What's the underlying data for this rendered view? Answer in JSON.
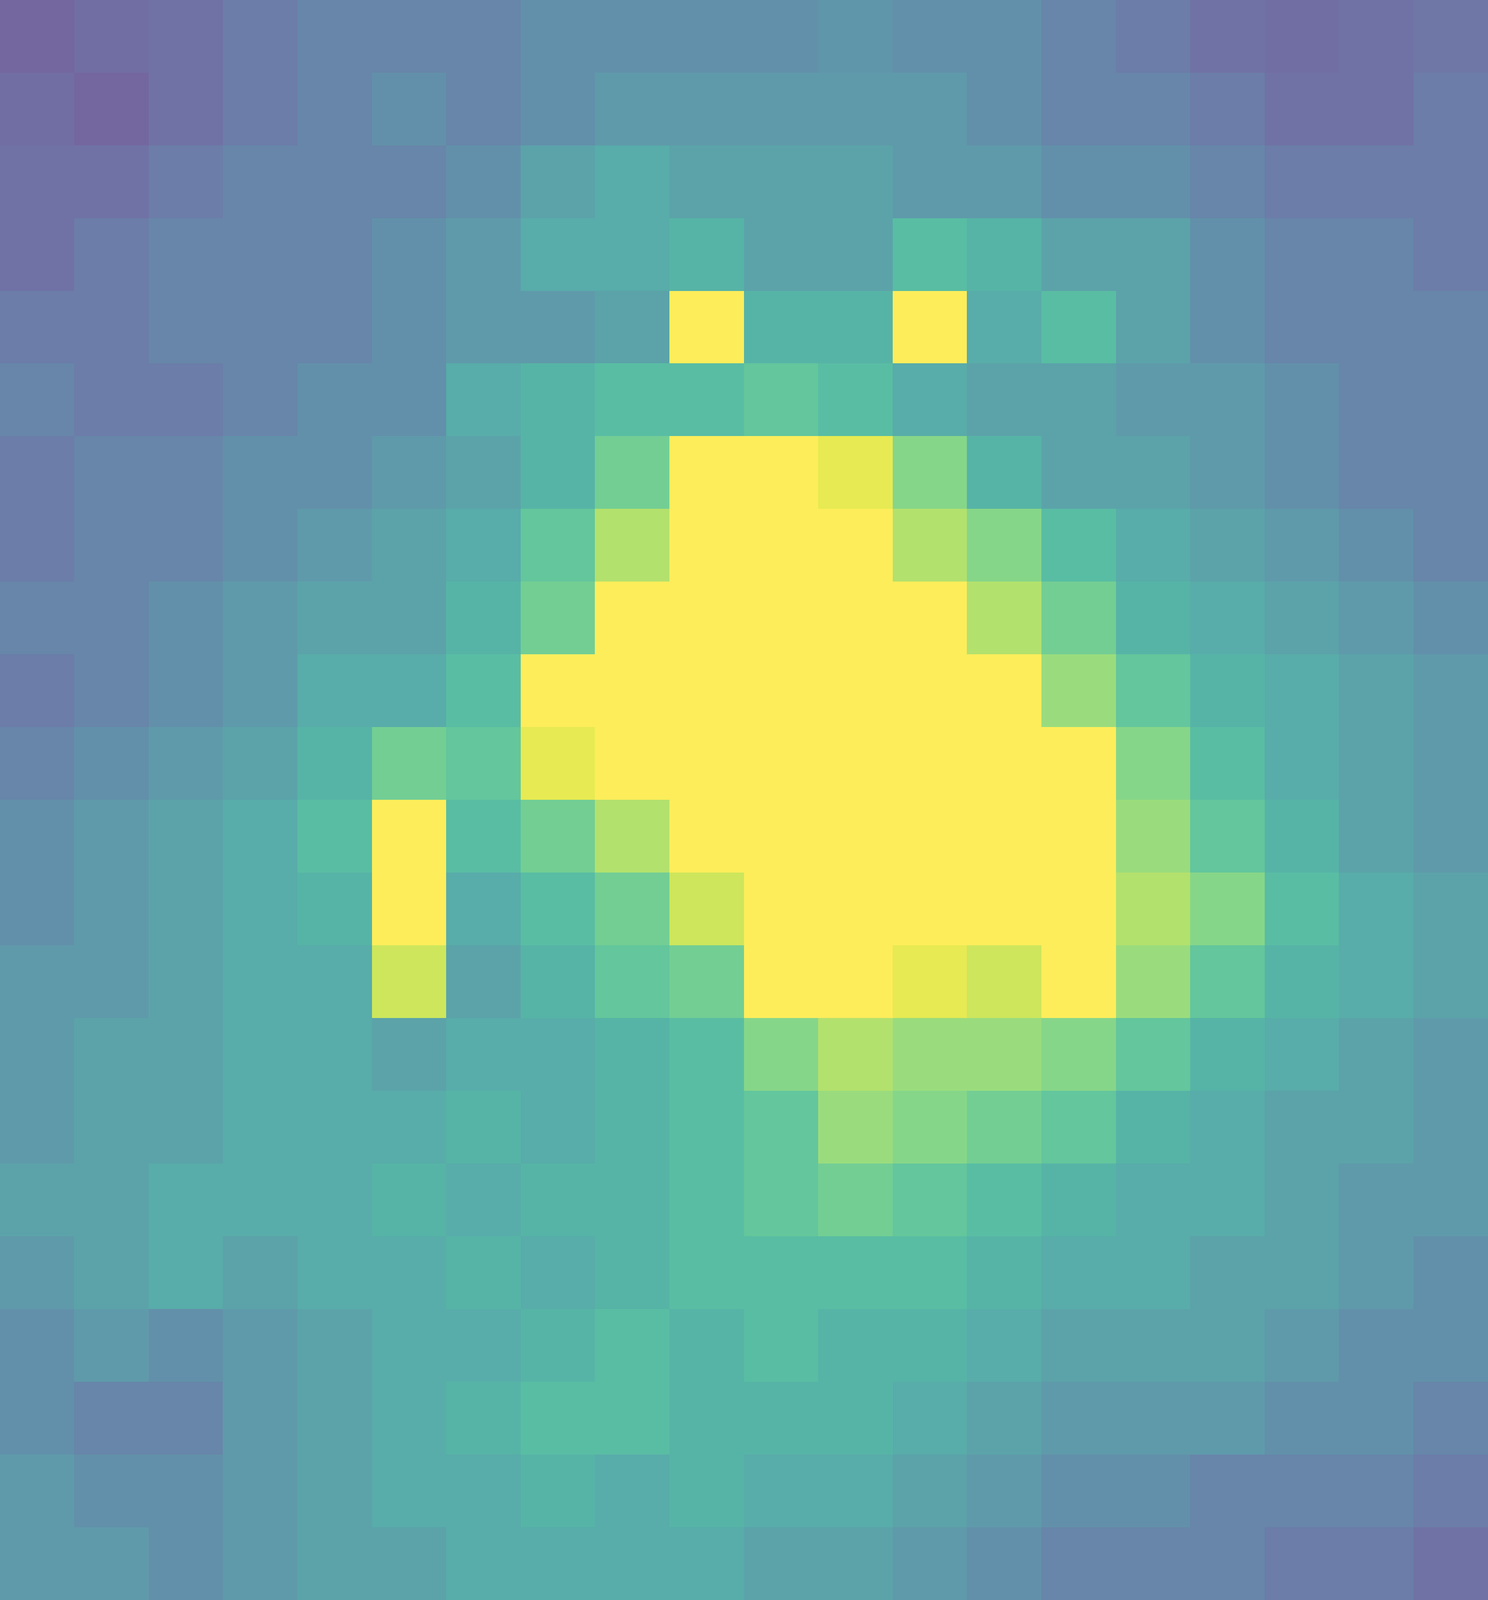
{
  "chart_data": {
    "type": "heatmap",
    "color": "viridis",
    "tick_labels": false,
    "color_range": [
      0,
      1
    ],
    "cells": [
      [
        0.15,
        0.18,
        0.2,
        0.25,
        0.3,
        0.3,
        0.3,
        0.35,
        0.35,
        0.35,
        0.35,
        0.38,
        0.35,
        0.35,
        0.3,
        0.25,
        0.2,
        0.18,
        0.2,
        0.22
      ],
      [
        0.18,
        0.15,
        0.2,
        0.25,
        0.3,
        0.35,
        0.3,
        0.35,
        0.4,
        0.4,
        0.4,
        0.4,
        0.4,
        0.35,
        0.3,
        0.3,
        0.25,
        0.2,
        0.2,
        0.25
      ],
      [
        0.2,
        0.2,
        0.25,
        0.3,
        0.3,
        0.3,
        0.35,
        0.45,
        0.5,
        0.45,
        0.45,
        0.45,
        0.4,
        0.4,
        0.35,
        0.35,
        0.3,
        0.25,
        0.25,
        0.25
      ],
      [
        0.2,
        0.25,
        0.3,
        0.3,
        0.3,
        0.35,
        0.4,
        0.5,
        0.5,
        0.55,
        0.45,
        0.45,
        0.6,
        0.55,
        0.45,
        0.45,
        0.35,
        0.3,
        0.3,
        0.25
      ],
      [
        0.25,
        0.25,
        0.3,
        0.3,
        0.3,
        0.35,
        0.4,
        0.4,
        0.45,
        1.0,
        0.55,
        0.55,
        1.0,
        0.5,
        0.6,
        0.45,
        0.35,
        0.3,
        0.3,
        0.3
      ],
      [
        0.3,
        0.25,
        0.25,
        0.3,
        0.35,
        0.35,
        0.5,
        0.55,
        0.6,
        0.6,
        0.65,
        0.6,
        0.5,
        0.45,
        0.45,
        0.4,
        0.4,
        0.35,
        0.3,
        0.3
      ],
      [
        0.25,
        0.3,
        0.3,
        0.35,
        0.35,
        0.4,
        0.45,
        0.55,
        0.7,
        1.0,
        1.0,
        0.95,
        0.75,
        0.55,
        0.45,
        0.45,
        0.4,
        0.35,
        0.3,
        0.3
      ],
      [
        0.25,
        0.3,
        0.3,
        0.35,
        0.4,
        0.45,
        0.5,
        0.65,
        0.85,
        1.0,
        1.0,
        1.0,
        0.85,
        0.75,
        0.6,
        0.5,
        0.45,
        0.4,
        0.35,
        0.3
      ],
      [
        0.3,
        0.3,
        0.35,
        0.4,
        0.45,
        0.45,
        0.55,
        0.7,
        1.0,
        1.0,
        1.0,
        1.0,
        1.0,
        0.85,
        0.7,
        0.55,
        0.5,
        0.45,
        0.4,
        0.35
      ],
      [
        0.25,
        0.3,
        0.35,
        0.4,
        0.5,
        0.5,
        0.6,
        1.0,
        1.0,
        1.0,
        1.0,
        1.0,
        1.0,
        1.0,
        0.8,
        0.65,
        0.55,
        0.5,
        0.45,
        0.4
      ],
      [
        0.3,
        0.35,
        0.4,
        0.45,
        0.55,
        0.7,
        0.65,
        0.95,
        1.0,
        1.0,
        1.0,
        1.0,
        1.0,
        1.0,
        1.0,
        0.75,
        0.6,
        0.5,
        0.45,
        0.4
      ],
      [
        0.35,
        0.4,
        0.45,
        0.5,
        0.6,
        1.0,
        0.6,
        0.7,
        0.85,
        1.0,
        1.0,
        1.0,
        1.0,
        1.0,
        1.0,
        0.8,
        0.65,
        0.55,
        0.45,
        0.4
      ],
      [
        0.35,
        0.4,
        0.45,
        0.5,
        0.55,
        1.0,
        0.5,
        0.6,
        0.7,
        0.9,
        1.0,
        1.0,
        1.0,
        1.0,
        1.0,
        0.85,
        0.75,
        0.6,
        0.5,
        0.45
      ],
      [
        0.4,
        0.4,
        0.45,
        0.5,
        0.5,
        0.9,
        0.45,
        0.55,
        0.65,
        0.7,
        1.0,
        1.0,
        0.95,
        0.9,
        1.0,
        0.8,
        0.65,
        0.55,
        0.5,
        0.45
      ],
      [
        0.4,
        0.45,
        0.45,
        0.5,
        0.5,
        0.45,
        0.5,
        0.5,
        0.55,
        0.6,
        0.75,
        0.85,
        0.8,
        0.8,
        0.75,
        0.65,
        0.55,
        0.5,
        0.45,
        0.4
      ],
      [
        0.4,
        0.45,
        0.45,
        0.5,
        0.5,
        0.5,
        0.55,
        0.5,
        0.55,
        0.6,
        0.65,
        0.8,
        0.75,
        0.7,
        0.65,
        0.55,
        0.5,
        0.45,
        0.45,
        0.4
      ],
      [
        0.45,
        0.45,
        0.5,
        0.5,
        0.5,
        0.55,
        0.5,
        0.55,
        0.55,
        0.6,
        0.65,
        0.7,
        0.65,
        0.6,
        0.55,
        0.5,
        0.5,
        0.45,
        0.4,
        0.4
      ],
      [
        0.4,
        0.45,
        0.5,
        0.45,
        0.5,
        0.5,
        0.55,
        0.5,
        0.55,
        0.6,
        0.6,
        0.6,
        0.6,
        0.55,
        0.5,
        0.5,
        0.45,
        0.45,
        0.4,
        0.35
      ],
      [
        0.35,
        0.4,
        0.35,
        0.4,
        0.45,
        0.5,
        0.5,
        0.55,
        0.6,
        0.55,
        0.6,
        0.55,
        0.55,
        0.5,
        0.45,
        0.45,
        0.45,
        0.4,
        0.35,
        0.35
      ],
      [
        0.35,
        0.3,
        0.3,
        0.4,
        0.45,
        0.5,
        0.55,
        0.6,
        0.6,
        0.55,
        0.55,
        0.55,
        0.5,
        0.45,
        0.4,
        0.4,
        0.4,
        0.35,
        0.35,
        0.3
      ],
      [
        0.4,
        0.35,
        0.35,
        0.4,
        0.45,
        0.5,
        0.5,
        0.55,
        0.5,
        0.55,
        0.5,
        0.5,
        0.45,
        0.4,
        0.35,
        0.35,
        0.3,
        0.3,
        0.3,
        0.25
      ],
      [
        0.4,
        0.4,
        0.35,
        0.4,
        0.45,
        0.45,
        0.5,
        0.5,
        0.5,
        0.5,
        0.45,
        0.45,
        0.4,
        0.35,
        0.3,
        0.3,
        0.3,
        0.25,
        0.25,
        0.2
      ]
    ]
  }
}
